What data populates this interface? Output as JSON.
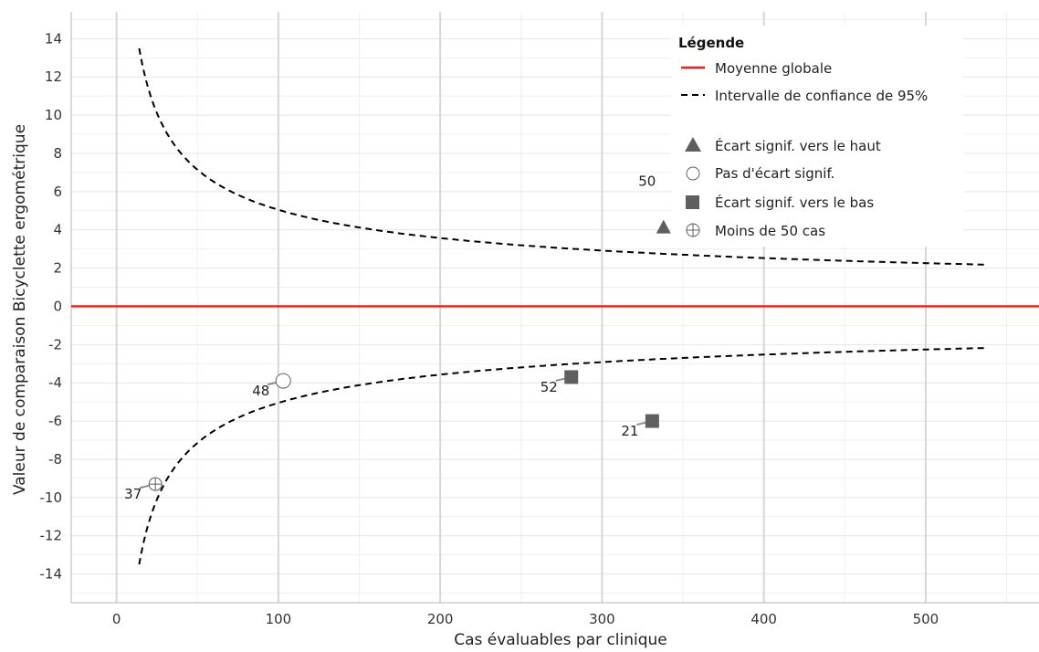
{
  "chart_data": {
    "type": "scatter",
    "xlabel": "Cas évaluables par clinique",
    "ylabel": "Valeur de comparaison Bicyclette ergométrique",
    "xlim": [
      -28,
      570
    ],
    "ylim": [
      -15.5,
      15.4
    ],
    "x_ticks": [
      0,
      100,
      200,
      300,
      400,
      500
    ],
    "y_ticks": [
      14,
      12,
      10,
      8,
      6,
      4,
      2,
      0,
      -2,
      -4,
      -6,
      -8,
      -10,
      -12,
      -14
    ],
    "grid": true,
    "mean_line": {
      "name": "Moyenne globale",
      "value": 0,
      "color": "#e8211f"
    },
    "confidence_interval": {
      "name": "Intervalle de confiance de 95%",
      "x_from": 14,
      "x_to": 537,
      "k": 50.5
    },
    "points": [
      {
        "x": 24,
        "y": -9.3,
        "label": "37",
        "category": "moins50",
        "label_dx": -34,
        "label_dy": 16
      },
      {
        "x": 103,
        "y": -3.9,
        "label": "48",
        "category": "pas_ecart",
        "label_dx": -34,
        "label_dy": 16
      },
      {
        "x": 281,
        "y": -3.7,
        "label": "52",
        "category": "bas",
        "label_dx": -34,
        "label_dy": 16
      },
      {
        "x": 331,
        "y": -6.0,
        "label": "21",
        "category": "bas",
        "label_dx": -34,
        "label_dy": 16
      },
      {
        "x": 338,
        "y": 4.1,
        "label": "",
        "category": "haut",
        "label_dx": 0,
        "label_dy": 0
      }
    ],
    "hidden_label": {
      "text": "50",
      "x": 336,
      "y": 6.6
    },
    "legend": {
      "title": "Légende",
      "position": "top-right",
      "items": [
        {
          "label": "Moyenne globale",
          "symbol": "line-red"
        },
        {
          "label": "Intervalle de confiance de 95%",
          "symbol": "line-dashed"
        },
        {
          "label": "Écart signif. vers le haut",
          "symbol": "triangle"
        },
        {
          "label": "Pas d'écart signif.",
          "symbol": "circle-open"
        },
        {
          "label": "Écart signif. vers le bas",
          "symbol": "square"
        },
        {
          "label": "Moins de 50 cas",
          "symbol": "circle-plus"
        }
      ]
    },
    "colors": {
      "marker": "#5f5f5f",
      "major_grid": "#d6d6d6",
      "minor_grid": "#efefef",
      "axis": "#b5b5b5"
    }
  }
}
